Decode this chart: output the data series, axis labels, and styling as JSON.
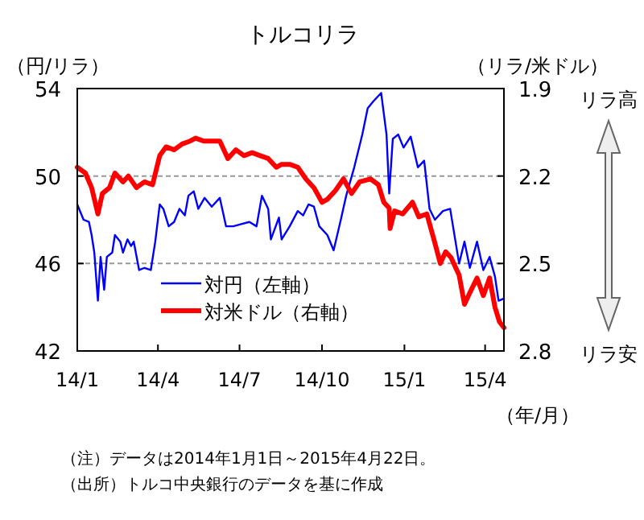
{
  "chart_data": {
    "type": "line",
    "title": "トルコリラ",
    "ylabel": "（円/リラ）",
    "y2label": "（リラ/米ドル）",
    "xlabel": "（年/月）",
    "xlim": [
      "2014-01-01",
      "2015-04-22"
    ],
    "xticks": [
      {
        "value": "2014-01-01",
        "label": "14/1"
      },
      {
        "value": "2014-04-01",
        "label": "14/4"
      },
      {
        "value": "2014-07-01",
        "label": "14/7"
      },
      {
        "value": "2014-10-01",
        "label": "14/10"
      },
      {
        "value": "2015-01-01",
        "label": "15/1"
      },
      {
        "value": "2015-04-01",
        "label": "15/4"
      }
    ],
    "ylim": [
      42,
      54
    ],
    "yticks": [
      42,
      46,
      50,
      54
    ],
    "y2lim": [
      2.8,
      1.9
    ],
    "y2ticks": [
      1.9,
      2.2,
      2.5,
      2.8
    ],
    "grid": "y",
    "legend": "bottom",
    "line_style": "solid",
    "series": [
      {
        "name": "対円（左軸）",
        "color": "#0000ff",
        "x": [
          "2014-01-01",
          "2014-01-08",
          "2014-01-14",
          "2014-01-17",
          "2014-01-20",
          "2014-01-24",
          "2014-01-27",
          "2014-01-31",
          "2014-02-03",
          "2014-02-09",
          "2014-02-12",
          "2014-02-18",
          "2014-02-21",
          "2014-02-26",
          "2014-03-02",
          "2014-03-05",
          "2014-03-11",
          "2014-03-17",
          "2014-03-24",
          "2014-03-29",
          "2014-04-03",
          "2014-04-07",
          "2014-04-13",
          "2014-04-19",
          "2014-04-25",
          "2014-05-01",
          "2014-05-05",
          "2014-05-11",
          "2014-05-16",
          "2014-05-23",
          "2014-05-31",
          "2014-06-09",
          "2014-06-16",
          "2014-06-24",
          "2014-07-03",
          "2014-07-12",
          "2014-07-20",
          "2014-07-26",
          "2014-08-02",
          "2014-08-05",
          "2014-08-14",
          "2014-08-17",
          "2014-08-26",
          "2014-09-04",
          "2014-09-10",
          "2014-09-16",
          "2014-09-22",
          "2014-09-28",
          "2014-10-07",
          "2014-10-14",
          "2014-10-22",
          "2014-10-28",
          "2014-11-06",
          "2014-11-15",
          "2014-11-21",
          "2014-11-27",
          "2014-12-06",
          "2014-12-12",
          "2014-12-15",
          "2014-12-19",
          "2014-12-25",
          "2014-12-31",
          "2015-01-08",
          "2015-01-16",
          "2015-01-23",
          "2015-01-29",
          "2015-02-04",
          "2015-02-13",
          "2015-02-21",
          "2015-03-03",
          "2015-03-09",
          "2015-03-15",
          "2015-03-23",
          "2015-03-30",
          "2015-04-06",
          "2015-04-12",
          "2015-04-16",
          "2015-04-22"
        ],
        "values": [
          48.7,
          48.0,
          47.9,
          47.3,
          46.5,
          44.3,
          46.3,
          44.8,
          46.3,
          46.5,
          47.3,
          47.0,
          46.5,
          47.1,
          46.8,
          47.0,
          45.7,
          45.8,
          45.7,
          47.0,
          48.7,
          48.5,
          47.7,
          47.9,
          48.5,
          48.2,
          49.1,
          49.3,
          48.5,
          49.0,
          48.6,
          49.0,
          47.7,
          47.7,
          47.8,
          47.9,
          47.7,
          49.1,
          48.5,
          47.1,
          48.1,
          47.1,
          47.7,
          48.4,
          48.2,
          48.7,
          48.6,
          47.7,
          47.3,
          46.6,
          48.0,
          49.1,
          50.4,
          51.9,
          53.1,
          53.4,
          53.8,
          51.9,
          49.2,
          51.7,
          51.9,
          51.3,
          51.8,
          50.4,
          50.7,
          48.5,
          48.0,
          48.4,
          48.5,
          46.0,
          47.0,
          45.8,
          47.0,
          45.7,
          46.3,
          45.4,
          44.3,
          44.4
        ]
      },
      {
        "name": "対米ドル（右軸）",
        "color": "#ff0000",
        "axis": "y2",
        "x": [
          "2014-01-01",
          "2014-01-10",
          "2014-01-17",
          "2014-01-24",
          "2014-01-29",
          "2014-02-06",
          "2014-02-12",
          "2014-02-21",
          "2014-02-27",
          "2014-03-08",
          "2014-03-17",
          "2014-03-26",
          "2014-04-03",
          "2014-04-10",
          "2014-04-19",
          "2014-04-28",
          "2014-05-07",
          "2014-05-13",
          "2014-05-22",
          "2014-05-31",
          "2014-06-09",
          "2014-06-18",
          "2014-06-27",
          "2014-07-06",
          "2014-07-15",
          "2014-07-24",
          "2014-08-02",
          "2014-08-11",
          "2014-08-17",
          "2014-08-26",
          "2014-09-04",
          "2014-09-13",
          "2014-09-22",
          "2014-10-01",
          "2014-10-07",
          "2014-10-16",
          "2014-10-25",
          "2014-11-03",
          "2014-11-12",
          "2014-11-24",
          "2014-12-03",
          "2014-12-09",
          "2014-12-15",
          "2014-12-16",
          "2014-12-21",
          "2014-12-30",
          "2015-01-10",
          "2015-01-17",
          "2015-01-26",
          "2015-02-04",
          "2015-02-10",
          "2015-02-16",
          "2015-02-22",
          "2015-03-03",
          "2015-03-09",
          "2015-03-15",
          "2015-03-23",
          "2015-03-30",
          "2015-04-06",
          "2015-04-12",
          "2015-04-17",
          "2015-04-22"
        ],
        "values": [
          2.17,
          2.19,
          2.24,
          2.33,
          2.26,
          2.24,
          2.19,
          2.22,
          2.2,
          2.24,
          2.22,
          2.23,
          2.13,
          2.1,
          2.11,
          2.09,
          2.08,
          2.07,
          2.08,
          2.08,
          2.08,
          2.14,
          2.11,
          2.13,
          2.12,
          2.13,
          2.14,
          2.17,
          2.16,
          2.16,
          2.17,
          2.21,
          2.24,
          2.29,
          2.28,
          2.25,
          2.21,
          2.26,
          2.22,
          2.21,
          2.23,
          2.29,
          2.31,
          2.38,
          2.32,
          2.33,
          2.29,
          2.34,
          2.33,
          2.43,
          2.5,
          2.46,
          2.48,
          2.54,
          2.64,
          2.6,
          2.55,
          2.61,
          2.55,
          2.65,
          2.7,
          2.72
        ]
      }
    ],
    "annotations": [
      "リラ高",
      "リラ安",
      "（注）データは2014年1月1日～2015年4月22日。",
      "（出所）トルコ中央銀行のデータを基に作成"
    ]
  }
}
